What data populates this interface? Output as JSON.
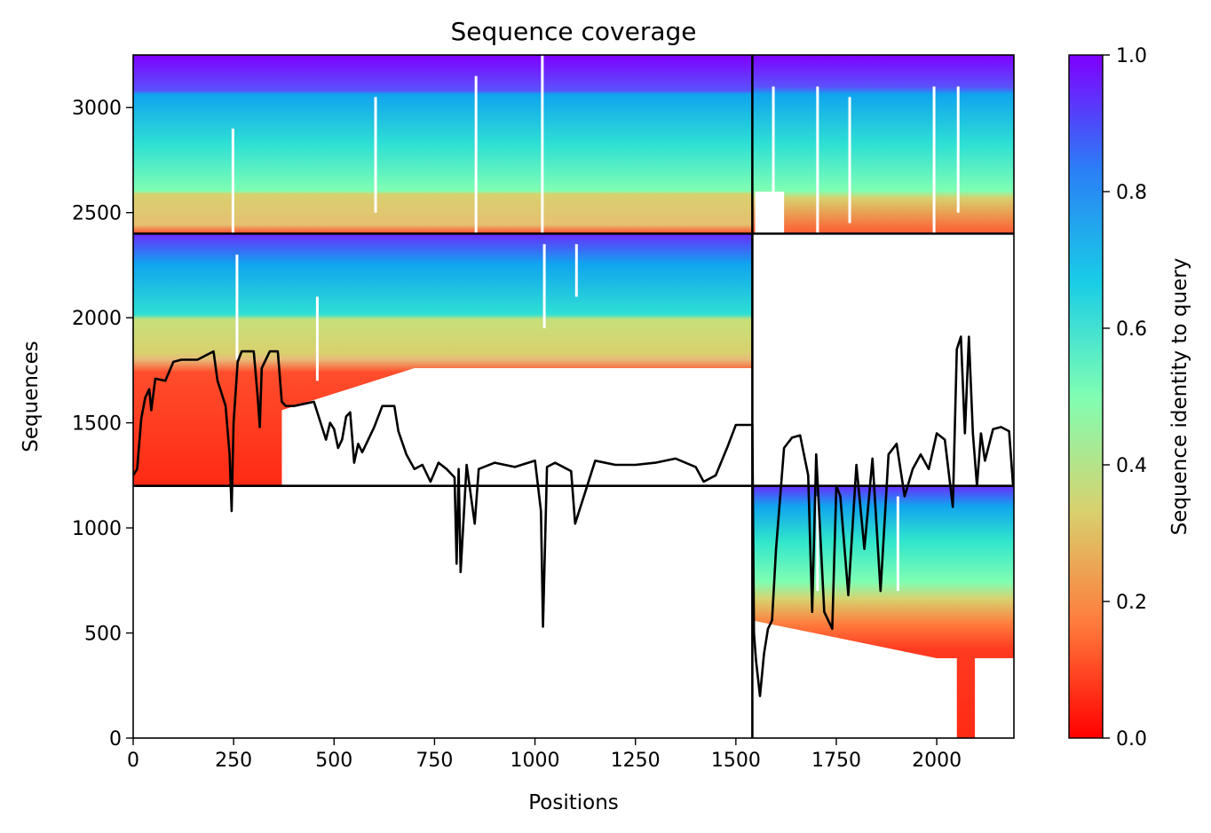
{
  "chart_data": {
    "type": "heatmap",
    "title": "Sequence coverage",
    "xlabel": "Positions",
    "ylabel": "Sequences",
    "xlim": [
      0,
      2192
    ],
    "ylim": [
      0,
      3250
    ],
    "xticks": [
      0,
      250,
      500,
      750,
      1000,
      1250,
      1500,
      1750,
      2000
    ],
    "yticks": [
      0,
      500,
      1000,
      1500,
      2000,
      2500,
      3000
    ],
    "colorbar": {
      "label": "Sequence identity to query",
      "range": [
        0,
        1
      ],
      "ticks": [
        0.0,
        0.2,
        0.4,
        0.6,
        0.8,
        1.0
      ],
      "tick_labels": [
        "0.0",
        "0.2",
        "0.4",
        "0.6",
        "0.8",
        "1.0"
      ],
      "colormap": [
        "#ff0000",
        "#ff7a3c",
        "#d8d16e",
        "#80feb3",
        "#19cde6",
        "#2b7ef6",
        "#7f00ff"
      ]
    },
    "block_dividers": {
      "x": [
        1541
      ],
      "y": [
        1200,
        2400
      ]
    },
    "blocks": [
      {
        "x": [
          0,
          1541
        ],
        "y": [
          2400,
          3250
        ],
        "note": "top-left"
      },
      {
        "x": [
          1541,
          2192
        ],
        "y": [
          2400,
          3250
        ],
        "note": "top-right"
      },
      {
        "x": [
          0,
          1541
        ],
        "y": [
          1200,
          2400
        ],
        "note": "middle-left"
      },
      {
        "x": [
          1541,
          2192
        ],
        "y": [
          0,
          1200
        ],
        "note": "bottom-right"
      }
    ],
    "coverage_line": {
      "color": "#000000",
      "x": [
        0,
        10,
        20,
        30,
        40,
        45,
        55,
        80,
        100,
        120,
        140,
        160,
        180,
        200,
        210,
        220,
        230,
        240,
        245,
        250,
        260,
        270,
        280,
        300,
        310,
        315,
        320,
        340,
        360,
        370,
        380,
        400,
        450,
        480,
        490,
        500,
        510,
        520,
        530,
        540,
        550,
        560,
        570,
        600,
        620,
        650,
        660,
        680,
        700,
        720,
        740,
        760,
        780,
        800,
        805,
        810,
        815,
        830,
        850,
        860,
        900,
        950,
        1000,
        1015,
        1020,
        1030,
        1050,
        1090,
        1100,
        1150,
        1200,
        1250,
        1300,
        1350,
        1400,
        1420,
        1450,
        1480,
        1500,
        1520,
        1541,
        1545,
        1550,
        1560,
        1570,
        1580,
        1590,
        1600,
        1620,
        1640,
        1660,
        1680,
        1690,
        1700,
        1720,
        1740,
        1750,
        1760,
        1780,
        1800,
        1820,
        1840,
        1860,
        1880,
        1900,
        1920,
        1940,
        1960,
        1980,
        2000,
        2020,
        2040,
        2050,
        2060,
        2070,
        2080,
        2090,
        2100,
        2110,
        2120,
        2140,
        2160,
        2180,
        2190
      ],
      "y": [
        1250,
        1280,
        1520,
        1620,
        1660,
        1560,
        1710,
        1700,
        1790,
        1800,
        1800,
        1800,
        1820,
        1840,
        1700,
        1640,
        1580,
        1350,
        1080,
        1500,
        1790,
        1840,
        1840,
        1840,
        1620,
        1480,
        1760,
        1840,
        1840,
        1600,
        1580,
        1580,
        1600,
        1420,
        1500,
        1470,
        1380,
        1420,
        1530,
        1550,
        1310,
        1400,
        1360,
        1480,
        1580,
        1580,
        1460,
        1350,
        1280,
        1300,
        1220,
        1310,
        1280,
        1240,
        830,
        1280,
        790,
        1300,
        1020,
        1280,
        1310,
        1290,
        1320,
        1080,
        530,
        1290,
        1310,
        1270,
        1020,
        1320,
        1300,
        1300,
        1310,
        1330,
        1290,
        1220,
        1250,
        1390,
        1490,
        1490,
        1490,
        500,
        370,
        200,
        400,
        520,
        560,
        900,
        1380,
        1430,
        1440,
        1250,
        600,
        1350,
        600,
        520,
        1200,
        1150,
        680,
        1300,
        900,
        1330,
        700,
        1350,
        1400,
        1150,
        1280,
        1350,
        1280,
        1450,
        1420,
        1100,
        1850,
        1910,
        1450,
        1910,
        1450,
        1200,
        1450,
        1320,
        1470,
        1480,
        1460,
        1200
      ]
    }
  }
}
